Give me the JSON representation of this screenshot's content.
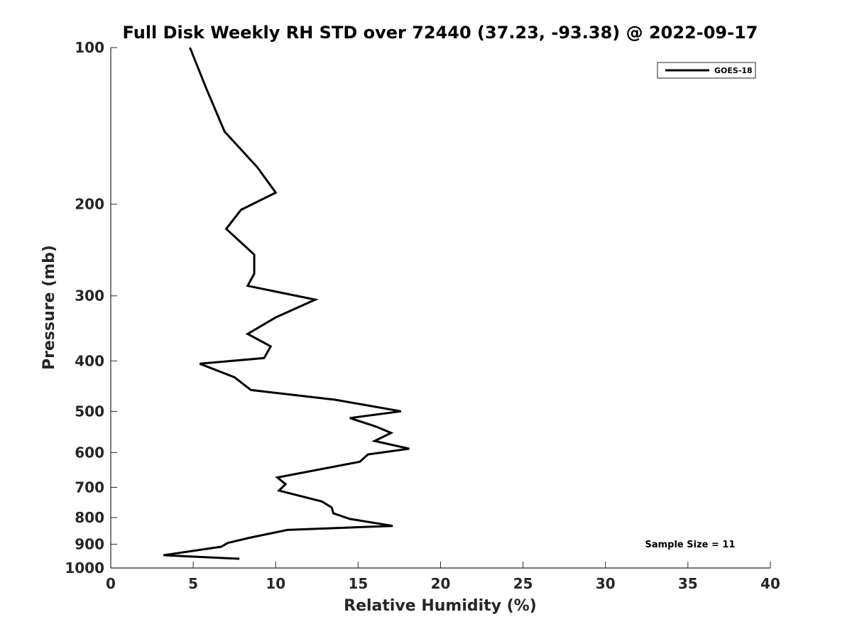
{
  "chart_data": {
    "type": "line",
    "title": "Full Disk Weekly RH STD over 72440 (37.23, -93.38) @ 2022-09-17",
    "xlabel": "Relative Humidity (%)",
    "ylabel": "Pressure (mb)",
    "xlim": [
      0,
      40
    ],
    "ylim": [
      100,
      1000
    ],
    "y_scale": "log",
    "y_reversed": true,
    "xticks": [
      0,
      5,
      10,
      15,
      20,
      25,
      30,
      35,
      40
    ],
    "yticks": [
      100,
      200,
      300,
      400,
      500,
      600,
      700,
      800,
      900,
      1000
    ],
    "grid": false,
    "legend_position": "top-right",
    "annotation": "Sample Size = 11",
    "series": [
      {
        "name": "GOES-18",
        "color": "#000000",
        "x": [
          4.8,
          5.8,
          6.9,
          8.9,
          10.0,
          7.9,
          7.0,
          8.7,
          8.7,
          8.3,
          12.4,
          10.0,
          8.3,
          9.7,
          9.3,
          5.4,
          7.5,
          8.5,
          13.6,
          17.6,
          14.5,
          16.1,
          17.0,
          16.0,
          18.1,
          15.6,
          15.1,
          10.1,
          10.6,
          10.2,
          12.8,
          13.4,
          13.5,
          14.5,
          17.1,
          10.7,
          8.4,
          7.1,
          6.7,
          3.2,
          7.8
        ],
        "y": [
          100,
          120,
          145,
          170,
          190,
          205,
          223,
          250,
          272,
          287,
          305,
          330,
          355,
          375,
          395,
          405,
          430,
          455,
          475,
          500,
          515,
          535,
          550,
          570,
          590,
          605,
          625,
          670,
          690,
          710,
          745,
          765,
          785,
          805,
          830,
          845,
          875,
          895,
          910,
          945,
          960
        ]
      }
    ]
  }
}
